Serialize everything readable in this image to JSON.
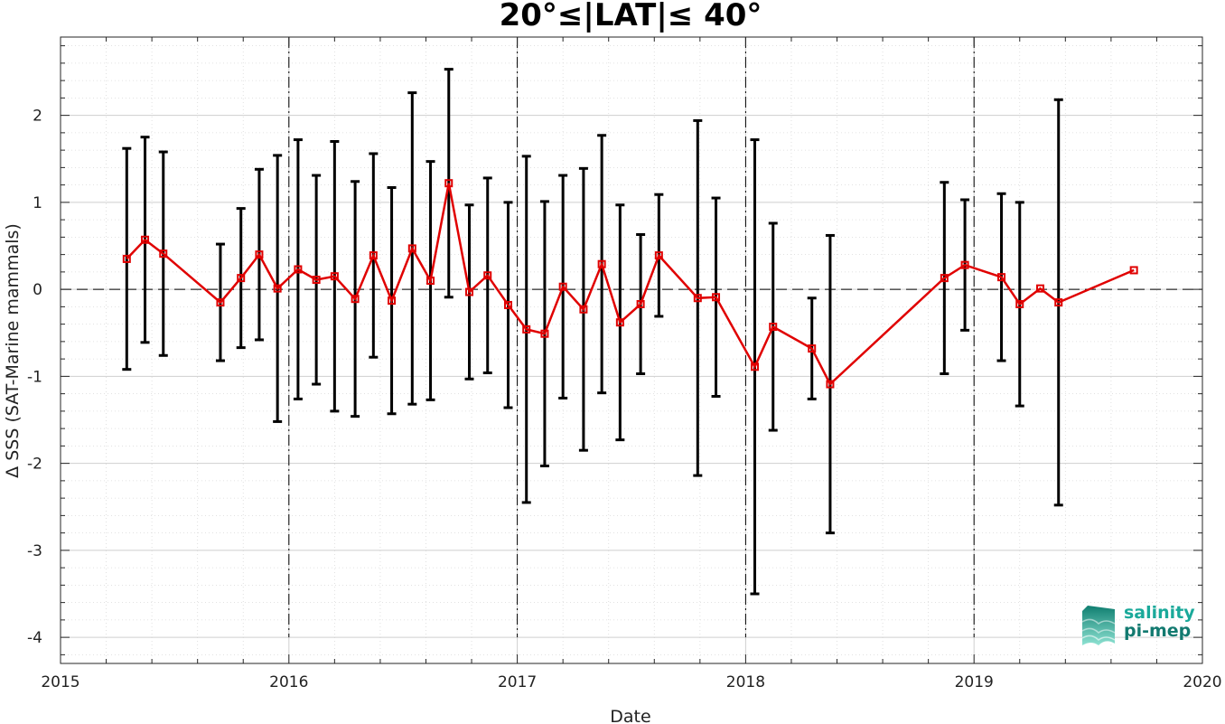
{
  "chart_data": {
    "type": "line",
    "title": "20°≤|LAT|≤ 40°",
    "xlabel": "Date",
    "ylabel": "Δ SSS (SAT-Marine mammals)",
    "xlim": [
      2015,
      2020
    ],
    "ylim": [
      -4.3,
      2.9
    ],
    "x_ticks": [
      "2015",
      "2016",
      "2017",
      "2018",
      "2019",
      "2020"
    ],
    "y_ticks": [
      "-4",
      "-3",
      "-2",
      "-1",
      "0",
      "1",
      "2"
    ],
    "grid": true,
    "year_boundaries": [
      2016,
      2017,
      2018,
      2019
    ],
    "zero_line": 0,
    "series": [
      {
        "color": "#e00000",
        "errorbar_color": "#000000",
        "x": [
          2015.29,
          2015.37,
          2015.45,
          2015.7,
          2015.79,
          2015.87,
          2015.95,
          2016.04,
          2016.12,
          2016.2,
          2016.29,
          2016.37,
          2016.45,
          2016.54,
          2016.62,
          2016.7,
          2016.79,
          2016.87,
          2016.96,
          2017.04,
          2017.12,
          2017.2,
          2017.29,
          2017.37,
          2017.45,
          2017.54,
          2017.62,
          2017.79,
          2017.87,
          2018.04,
          2018.12,
          2018.29,
          2018.37,
          2018.87,
          2018.96,
          2019.12,
          2019.2,
          2019.29,
          2019.37,
          2019.7
        ],
        "y": [
          0.35,
          0.57,
          0.41,
          -0.15,
          0.13,
          0.4,
          0.01,
          0.23,
          0.11,
          0.15,
          -0.11,
          0.39,
          -0.13,
          0.47,
          0.1,
          1.22,
          -0.03,
          0.16,
          -0.18,
          -0.46,
          -0.51,
          0.03,
          -0.23,
          0.29,
          -0.38,
          -0.17,
          0.39,
          -0.1,
          -0.09,
          -0.89,
          -0.43,
          -0.68,
          -1.09,
          0.13,
          0.28,
          0.14,
          -0.17,
          0.01,
          -0.15,
          0.22
        ],
        "err": [
          1.27,
          1.18,
          1.17,
          0.67,
          0.8,
          0.98,
          1.53,
          1.49,
          1.2,
          1.55,
          1.35,
          1.17,
          1.3,
          1.79,
          1.37,
          1.31,
          1.0,
          1.12,
          1.18,
          1.99,
          1.52,
          1.28,
          1.62,
          1.48,
          1.35,
          0.8,
          0.7,
          2.04,
          1.14,
          2.61,
          1.19,
          0.58,
          1.71,
          1.1,
          0.75,
          0.96,
          1.17,
          0.0,
          2.33,
          0.0
        ]
      }
    ]
  },
  "logo": {
    "line1": "salinity",
    "line2": "pi-mep"
  }
}
